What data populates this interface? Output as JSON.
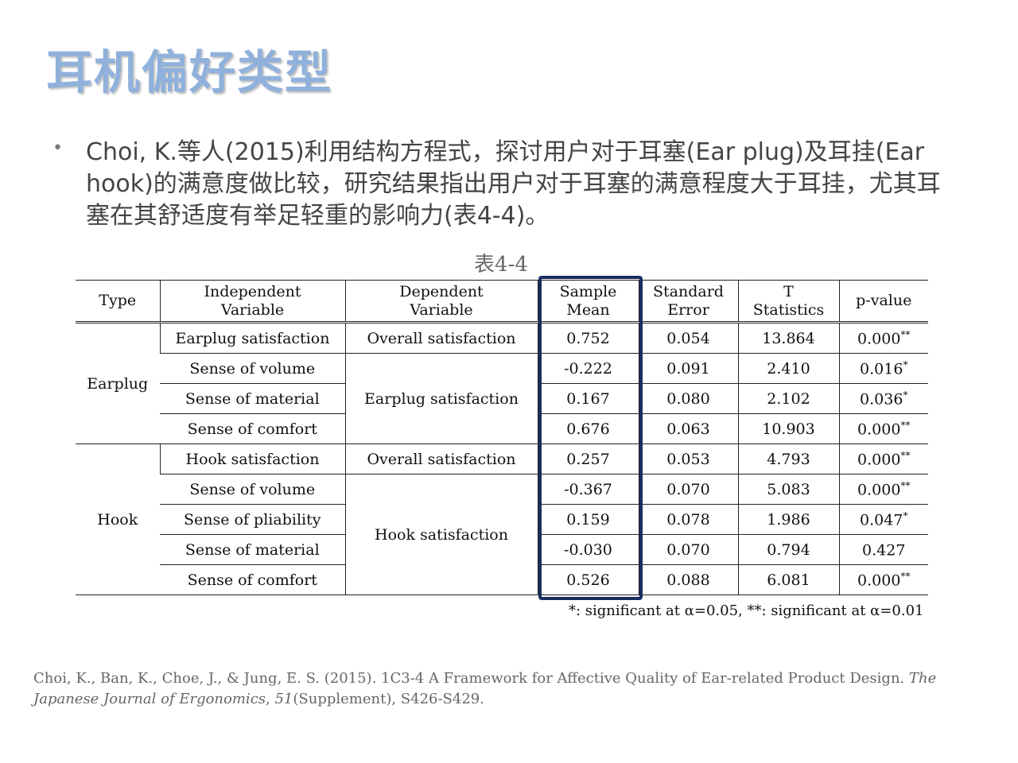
{
  "slide": {
    "title": "耳机偏好类型",
    "bullet": "Choi, K.等人(2015)利用结构方程式，探讨用户对于耳塞(Ear plug)及耳挂(Ear hook)的满意度做比较，研究结果指出用户对于耳塞的满意程度大于耳挂，尤其耳塞在其舒适度有举足轻重的影响力(表4-4)。"
  },
  "table": {
    "caption": "表4-4",
    "headers": {
      "type": "Type",
      "iv_line1": "Independent",
      "iv_line2": "Variable",
      "dv_line1": "Dependent",
      "dv_line2": "Variable",
      "mean_line1": "Sample",
      "mean_line2": "Mean",
      "se_line1": "Standard",
      "se_line2": "Error",
      "t_line1": "T",
      "t_line2": "Statistics",
      "p": "p-value"
    },
    "groups": {
      "earplug": {
        "type": "Earplug",
        "dv_overall": "Overall satisfaction",
        "dv_group": "Earplug satisfaction",
        "rows": [
          {
            "iv": "Earplug satisfaction",
            "mean": "0.752",
            "se": "0.054",
            "t": "13.864",
            "p": "0.000",
            "sig": "**"
          },
          {
            "iv": "Sense of volume",
            "mean": "-0.222",
            "se": "0.091",
            "t": "2.410",
            "p": "0.016",
            "sig": "*"
          },
          {
            "iv": "Sense of material",
            "mean": "0.167",
            "se": "0.080",
            "t": "2.102",
            "p": "0.036",
            "sig": "*"
          },
          {
            "iv": "Sense of comfort",
            "mean": "0.676",
            "se": "0.063",
            "t": "10.903",
            "p": "0.000",
            "sig": "**"
          }
        ]
      },
      "hook": {
        "type": "Hook",
        "dv_overall": "Overall satisfaction",
        "dv_group": "Hook satisfaction",
        "rows": [
          {
            "iv": "Hook satisfaction",
            "mean": "0.257",
            "se": "0.053",
            "t": "4.793",
            "p": "0.000",
            "sig": "**"
          },
          {
            "iv": "Sense of volume",
            "mean": "-0.367",
            "se": "0.070",
            "t": "5.083",
            "p": "0.000",
            "sig": "**"
          },
          {
            "iv": "Sense of pliability",
            "mean": "0.159",
            "se": "0.078",
            "t": "1.986",
            "p": "0.047",
            "sig": "*"
          },
          {
            "iv": "Sense of material",
            "mean": "-0.030",
            "se": "0.070",
            "t": "0.794",
            "p": "0.427",
            "sig": ""
          },
          {
            "iv": "Sense of comfort",
            "mean": "0.526",
            "se": "0.088",
            "t": "6.081",
            "p": "0.000",
            "sig": "**"
          }
        ]
      }
    },
    "footnote": "*: significant at α=0.05, **: significant at α=0.01",
    "highlight_color": "#1a2d60"
  },
  "reference": {
    "authors": "Choi, K., Ban, K., Choe, J., & Jung, E. S. (2015). 1C3-4 A Framework for Affective Quality of Ear-related Product Design. ",
    "journal": "The Japanese Journal of Ergonomics",
    "sep": ", ",
    "volume": "51",
    "rest": "(Supplement), S426-S429."
  },
  "colors": {
    "title": "#8fb1dc",
    "body_text": "#444444",
    "reference_text": "#666666"
  }
}
